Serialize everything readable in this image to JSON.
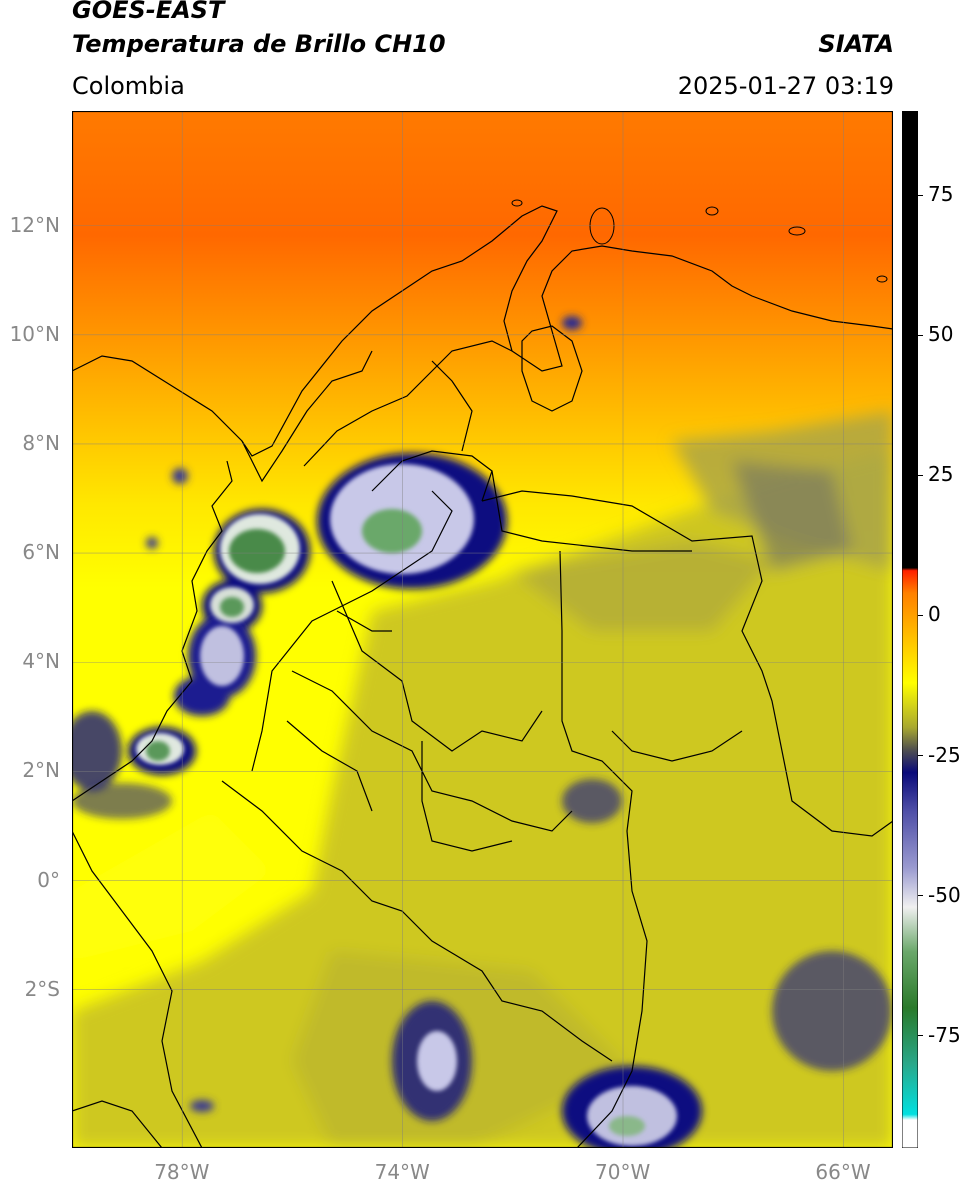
{
  "header": {
    "satellite": "GOES-EAST",
    "product": "Temperatura de Brillo CH10",
    "organization": "SIATA",
    "region": "Colombia",
    "datetime": "2025-01-27 03:19"
  },
  "map": {
    "lon_range": [
      -80,
      -65.1
    ],
    "lat_range": [
      -4.9,
      14.1
    ],
    "lon_ticks": [
      {
        "value": -78,
        "label": "78°W"
      },
      {
        "value": -74,
        "label": "74°W"
      },
      {
        "value": -70,
        "label": "70°W"
      },
      {
        "value": -66,
        "label": "66°W"
      }
    ],
    "lat_ticks": [
      {
        "value": 12,
        "label": "12°N"
      },
      {
        "value": 10,
        "label": "10°N"
      },
      {
        "value": 8,
        "label": "8°N"
      },
      {
        "value": 6,
        "label": "6°N"
      },
      {
        "value": 4,
        "label": "4°N"
      },
      {
        "value": 2,
        "label": "2°N"
      },
      {
        "value": 0,
        "label": "0°"
      },
      {
        "value": -2,
        "label": "2°S"
      }
    ],
    "grid": true
  },
  "colorbar": {
    "range": [
      -95,
      90
    ],
    "ticks": [
      {
        "value": 75,
        "label": "75"
      },
      {
        "value": 50,
        "label": "50"
      },
      {
        "value": 25,
        "label": "25"
      },
      {
        "value": 0,
        "label": "0"
      },
      {
        "value": -25,
        "label": "-25"
      },
      {
        "value": -50,
        "label": "-50"
      },
      {
        "value": -75,
        "label": "-75"
      }
    ],
    "stops": [
      {
        "value": -95,
        "color": "#ffffff"
      },
      {
        "value": -90,
        "color": "#ffffff"
      },
      {
        "value": -89,
        "color": "#00e0e0"
      },
      {
        "value": -80,
        "color": "#2aa88a"
      },
      {
        "value": -70,
        "color": "#2a7a2a"
      },
      {
        "value": -60,
        "color": "#6aa86a"
      },
      {
        "value": -52,
        "color": "#f0f0f0"
      },
      {
        "value": -45,
        "color": "#9a9ad0"
      },
      {
        "value": -35,
        "color": "#5050a8"
      },
      {
        "value": -28,
        "color": "#0a0a7a"
      },
      {
        "value": -24,
        "color": "#505050"
      },
      {
        "value": -20,
        "color": "#a8a830"
      },
      {
        "value": -12,
        "color": "#ffff00"
      },
      {
        "value": -4,
        "color": "#ffc000"
      },
      {
        "value": 4,
        "color": "#ff8000"
      },
      {
        "value": 8,
        "color": "#ff2000"
      },
      {
        "value": 8.5,
        "color": "#000000"
      },
      {
        "value": 90,
        "color": "#000000"
      }
    ]
  },
  "colors": {
    "warm_north": "#ff6a00",
    "land_olive": "#c8c020",
    "clear_yellow": "#ffff00",
    "cold_cloud_blue": "#0a0a80",
    "coldest_green": "#2e8b3a"
  }
}
